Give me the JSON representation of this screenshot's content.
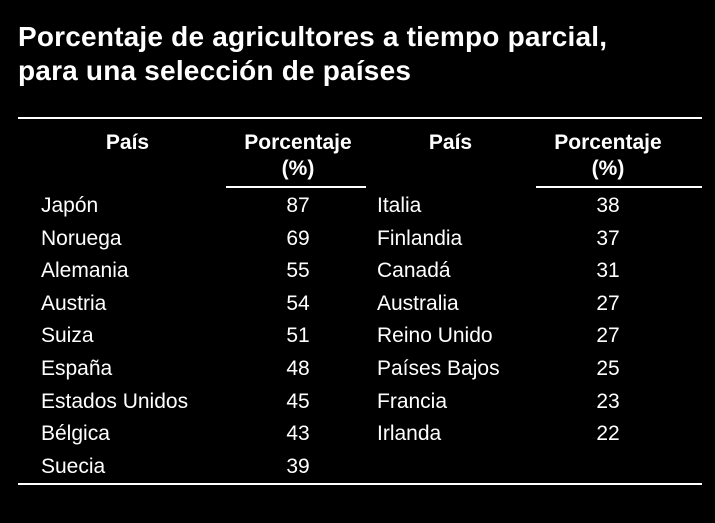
{
  "title": {
    "line1": "Porcentaje de agricultores a tiempo parcial,",
    "line2": "para una selección de países"
  },
  "headers": {
    "pais": "País",
    "porcentaje_line1": "Porcentaje",
    "porcentaje_line2": "(%)"
  },
  "left_rows": [
    {
      "pais": "Japón",
      "porcentaje": "87"
    },
    {
      "pais": "Noruega",
      "porcentaje": "69"
    },
    {
      "pais": "Alemania",
      "porcentaje": "55"
    },
    {
      "pais": "Austria",
      "porcentaje": "54"
    },
    {
      "pais": "Suiza",
      "porcentaje": "51"
    },
    {
      "pais": "España",
      "porcentaje": "48"
    },
    {
      "pais": "Estados Unidos",
      "porcentaje": "45"
    },
    {
      "pais": "Bélgica",
      "porcentaje": "43"
    },
    {
      "pais": "Suecia",
      "porcentaje": "39"
    }
  ],
  "right_rows": [
    {
      "pais": "Italia",
      "porcentaje": "38"
    },
    {
      "pais": "Finlandia",
      "porcentaje": "37"
    },
    {
      "pais": "Canadá",
      "porcentaje": "31"
    },
    {
      "pais": "Australia",
      "porcentaje": "27"
    },
    {
      "pais": "Reino Unido",
      "porcentaje": "27"
    },
    {
      "pais": "Países Bajos",
      "porcentaje": "25"
    },
    {
      "pais": "Francia",
      "porcentaje": "23"
    },
    {
      "pais": "Irlanda",
      "porcentaje": "22"
    }
  ]
}
